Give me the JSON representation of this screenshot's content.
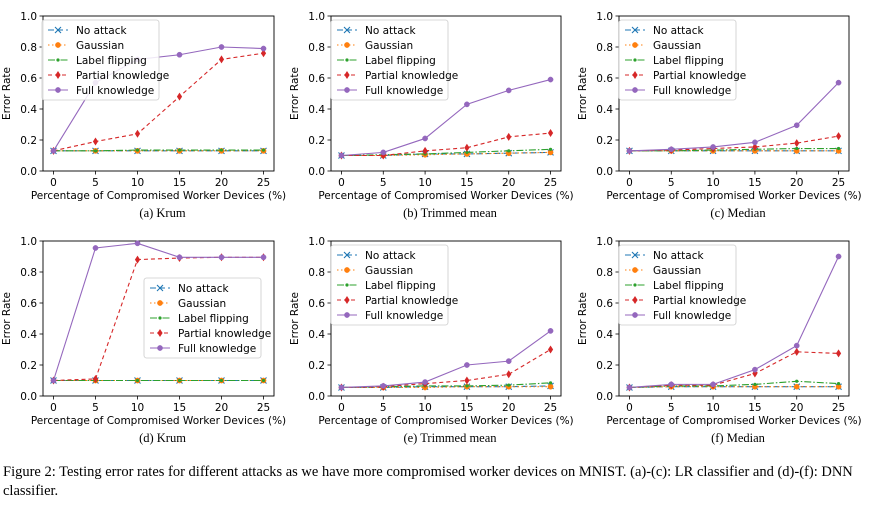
{
  "figure": {
    "caption": "Figure 2: Testing error rates for different attacks as we have more compromised worker devices on MNIST. (a)-(c): LR classifier and (d)-(f): DNN classifier."
  },
  "series_styles": [
    {
      "name": "No attack",
      "color": "#1f77b4",
      "marker": "x",
      "dash": "6,3"
    },
    {
      "name": "Gaussian",
      "color": "#ff7f0e",
      "marker": "o",
      "dash": "1.5,2.5"
    },
    {
      "name": "Label flipping",
      "color": "#2ca02c",
      "marker": ".",
      "dash": "7,2,1.5,2"
    },
    {
      "name": "Partial knowledge",
      "color": "#d62728",
      "marker": "d",
      "dash": "4,3"
    },
    {
      "name": "Full knowledge",
      "color": "#9467bd",
      "marker": "o",
      "dash": ""
    }
  ],
  "chart_data": [
    {
      "type": "line",
      "caption": "(a) Krum",
      "xlabel": "Percentage of Compromised Worker Devices (%)",
      "ylabel": "Error Rate",
      "x": [
        0,
        5,
        10,
        15,
        20,
        25
      ],
      "xlim": [
        -1.25,
        26.25
      ],
      "ylim": [
        0,
        1.0
      ],
      "yticks": [
        "0.0",
        "0.2",
        "0.4",
        "0.6",
        "0.8",
        "1.0"
      ],
      "legend": "upper-left",
      "series": [
        {
          "name": "No attack",
          "values": [
            0.13,
            0.13,
            0.13,
            0.13,
            0.13,
            0.13
          ]
        },
        {
          "name": "Gaussian",
          "values": [
            0.13,
            0.13,
            0.13,
            0.13,
            0.13,
            0.13
          ]
        },
        {
          "name": "Label flipping",
          "values": [
            0.13,
            0.13,
            0.135,
            0.135,
            0.135,
            0.135
          ]
        },
        {
          "name": "Partial knowledge",
          "values": [
            0.13,
            0.19,
            0.24,
            0.48,
            0.72,
            0.76
          ]
        },
        {
          "name": "Full knowledge",
          "values": [
            0.13,
            0.57,
            0.72,
            0.75,
            0.8,
            0.79
          ]
        }
      ]
    },
    {
      "type": "line",
      "caption": "(b) Trimmed mean",
      "xlabel": "Percentage of Compromised Worker Devices (%)",
      "ylabel": "Error Rate",
      "x": [
        0,
        5,
        10,
        15,
        20,
        25
      ],
      "xlim": [
        -1.25,
        26.25
      ],
      "ylim": [
        0,
        1.0
      ],
      "yticks": [
        "0.0",
        "0.2",
        "0.4",
        "0.6",
        "0.8",
        "1.0"
      ],
      "legend": "upper-left",
      "series": [
        {
          "name": "No attack",
          "values": [
            0.1,
            0.1,
            0.11,
            0.11,
            0.115,
            0.12
          ]
        },
        {
          "name": "Gaussian",
          "values": [
            0.1,
            0.1,
            0.105,
            0.11,
            0.115,
            0.12
          ]
        },
        {
          "name": "Label flipping",
          "values": [
            0.1,
            0.105,
            0.11,
            0.12,
            0.13,
            0.14
          ]
        },
        {
          "name": "Partial knowledge",
          "values": [
            0.1,
            0.1,
            0.13,
            0.15,
            0.22,
            0.245
          ]
        },
        {
          "name": "Full knowledge",
          "values": [
            0.1,
            0.12,
            0.21,
            0.43,
            0.52,
            0.59
          ]
        }
      ]
    },
    {
      "type": "line",
      "caption": "(c) Median",
      "xlabel": "Percentage of Compromised Worker Devices (%)",
      "ylabel": "Error Rate",
      "x": [
        0,
        5,
        10,
        15,
        20,
        25
      ],
      "xlim": [
        -1.25,
        26.25
      ],
      "ylim": [
        0,
        1.0
      ],
      "yticks": [
        "0.0",
        "0.2",
        "0.4",
        "0.6",
        "0.8",
        "1.0"
      ],
      "legend": "upper-left",
      "series": [
        {
          "name": "No attack",
          "values": [
            0.13,
            0.13,
            0.13,
            0.13,
            0.13,
            0.13
          ]
        },
        {
          "name": "Gaussian",
          "values": [
            0.13,
            0.13,
            0.13,
            0.13,
            0.13,
            0.13
          ]
        },
        {
          "name": "Label flipping",
          "values": [
            0.13,
            0.13,
            0.135,
            0.14,
            0.145,
            0.145
          ]
        },
        {
          "name": "Partial knowledge",
          "values": [
            0.13,
            0.135,
            0.145,
            0.155,
            0.18,
            0.225
          ]
        },
        {
          "name": "Full knowledge",
          "values": [
            0.13,
            0.14,
            0.155,
            0.185,
            0.295,
            0.57
          ]
        }
      ]
    },
    {
      "type": "line",
      "caption": "(d) Krum",
      "xlabel": "Percentage of Compromised Worker Devices (%)",
      "ylabel": "Error Rate",
      "x": [
        0,
        5,
        10,
        15,
        20,
        25
      ],
      "xlim": [
        -1.25,
        26.25
      ],
      "ylim": [
        0,
        1.0
      ],
      "yticks": [
        "0.0",
        "0.2",
        "0.4",
        "0.6",
        "0.8",
        "1.0"
      ],
      "legend": "center-right",
      "series": [
        {
          "name": "No attack",
          "values": [
            0.1,
            0.1,
            0.1,
            0.1,
            0.1,
            0.1
          ]
        },
        {
          "name": "Gaussian",
          "values": [
            0.1,
            0.1,
            0.1,
            0.1,
            0.1,
            0.1
          ]
        },
        {
          "name": "Label flipping",
          "values": [
            0.1,
            0.1,
            0.1,
            0.1,
            0.1,
            0.1
          ]
        },
        {
          "name": "Partial knowledge",
          "values": [
            0.1,
            0.11,
            0.88,
            0.89,
            0.895,
            0.895
          ]
        },
        {
          "name": "Full knowledge",
          "values": [
            0.1,
            0.955,
            0.985,
            0.895,
            0.895,
            0.895
          ]
        }
      ]
    },
    {
      "type": "line",
      "caption": "(e) Trimmed mean",
      "xlabel": "Percentage of Compromised Worker Devices (%)",
      "ylabel": "Error Rate",
      "x": [
        0,
        5,
        10,
        15,
        20,
        25
      ],
      "xlim": [
        -1.25,
        26.25
      ],
      "ylim": [
        0,
        1.0
      ],
      "yticks": [
        "0.0",
        "0.2",
        "0.4",
        "0.6",
        "0.8",
        "1.0"
      ],
      "legend": "upper-left",
      "series": [
        {
          "name": "No attack",
          "values": [
            0.055,
            0.055,
            0.06,
            0.06,
            0.06,
            0.065
          ]
        },
        {
          "name": "Gaussian",
          "values": [
            0.055,
            0.055,
            0.055,
            0.06,
            0.06,
            0.06
          ]
        },
        {
          "name": "Label flipping",
          "values": [
            0.055,
            0.06,
            0.065,
            0.065,
            0.07,
            0.085
          ]
        },
        {
          "name": "Partial knowledge",
          "values": [
            0.055,
            0.06,
            0.08,
            0.1,
            0.14,
            0.3
          ]
        },
        {
          "name": "Full knowledge",
          "values": [
            0.055,
            0.065,
            0.09,
            0.2,
            0.225,
            0.42
          ]
        }
      ]
    },
    {
      "type": "line",
      "caption": "(f) Median",
      "xlabel": "Percentage of Compromised Worker Devices (%)",
      "ylabel": "Error Rate",
      "x": [
        0,
        5,
        10,
        15,
        20,
        25
      ],
      "xlim": [
        -1.25,
        26.25
      ],
      "ylim": [
        0,
        1.0
      ],
      "yticks": [
        "0.0",
        "0.2",
        "0.4",
        "0.6",
        "0.8",
        "1.0"
      ],
      "legend": "upper-left",
      "series": [
        {
          "name": "No attack",
          "values": [
            0.055,
            0.06,
            0.06,
            0.06,
            0.06,
            0.06
          ]
        },
        {
          "name": "Gaussian",
          "values": [
            0.055,
            0.06,
            0.06,
            0.06,
            0.06,
            0.06
          ]
        },
        {
          "name": "Label flipping",
          "values": [
            0.055,
            0.065,
            0.065,
            0.075,
            0.095,
            0.08
          ]
        },
        {
          "name": "Partial knowledge",
          "values": [
            0.055,
            0.07,
            0.07,
            0.145,
            0.285,
            0.275
          ]
        },
        {
          "name": "Full knowledge",
          "values": [
            0.055,
            0.075,
            0.075,
            0.17,
            0.325,
            0.9
          ]
        }
      ]
    }
  ]
}
